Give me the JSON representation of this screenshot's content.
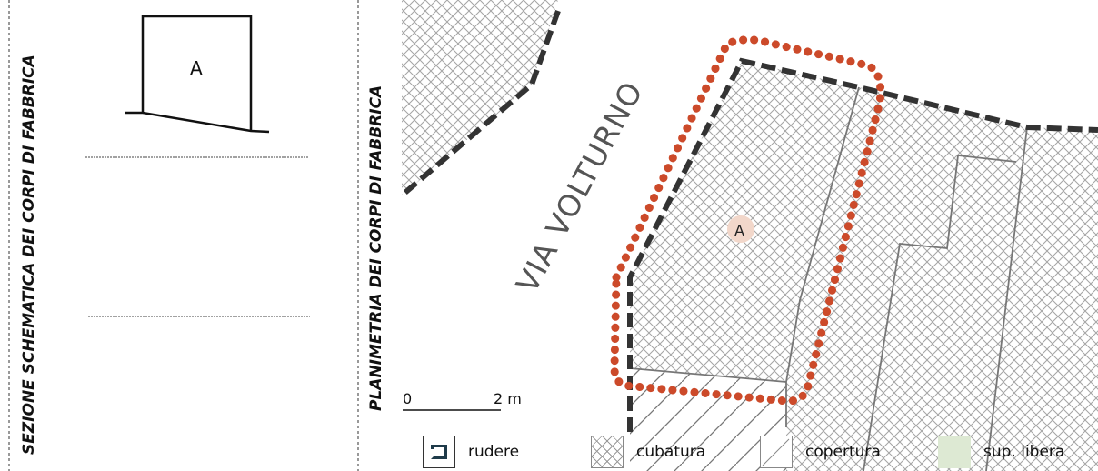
{
  "titles": {
    "section": "SEZIONE SCHEMATICA DEI CORPI DI FABBRICA",
    "plan": "PLANIMETRIA DEI CORPI DI FABBRICA"
  },
  "section_view": {
    "building_label": "A"
  },
  "plan_view": {
    "street_name": "VIA VOLTURNO",
    "building_label": "A",
    "scale_bar": {
      "start": "0",
      "end": "2 m"
    }
  },
  "legend": {
    "rudere": "rudere",
    "cubatura": "cubatura",
    "copertura": "copertura",
    "libera": "sup. libera"
  },
  "colors": {
    "highlight_outline": "#cc4a2a",
    "marker_fill": "#f2d7ca",
    "libera_fill": "#dde9d3",
    "dash_line": "#333333",
    "hatch_line": "#9a9a9a"
  }
}
